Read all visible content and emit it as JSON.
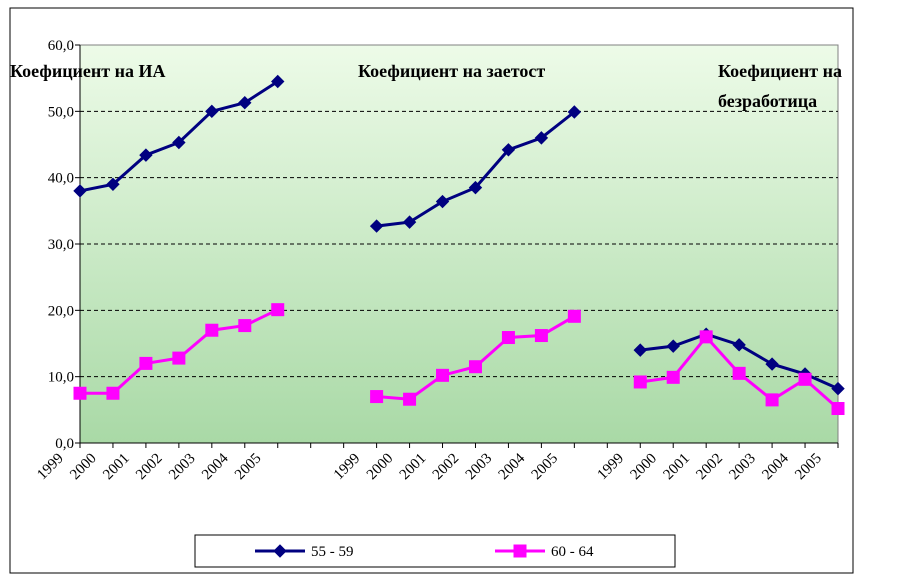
{
  "chart_data": {
    "type": "line",
    "annotations": [
      {
        "lines": [
          "Коефициент на ИА"
        ]
      },
      {
        "lines": [
          "Коефициент на заетост"
        ]
      },
      {
        "lines": [
          "Коефициент на",
          "безработица"
        ]
      }
    ],
    "categories": [
      "1999",
      "2000",
      "2001",
      "2002",
      "2003",
      "2004",
      "2005",
      null,
      null,
      "1999",
      "2000",
      "2001",
      "2002",
      "2003",
      "2004",
      "2005",
      null,
      "1999",
      "2000",
      "2001",
      "2002",
      "2003",
      "2004",
      "2005"
    ],
    "series": [
      {
        "name": "55 - 59",
        "color": "#000080",
        "marker": "diamond",
        "values": [
          38.0,
          39.0,
          43.4,
          45.3,
          50.0,
          51.3,
          54.5,
          null,
          null,
          32.7,
          33.3,
          36.4,
          38.5,
          44.2,
          46.0,
          49.9,
          null,
          14.0,
          14.6,
          16.4,
          14.8,
          11.9,
          10.4,
          8.2
        ]
      },
      {
        "name": "60 - 64",
        "color": "#ff00ff",
        "marker": "square",
        "values": [
          7.5,
          7.5,
          12.0,
          12.8,
          17.0,
          17.7,
          20.1,
          null,
          null,
          7.0,
          6.6,
          10.2,
          11.5,
          15.9,
          16.2,
          19.1,
          null,
          9.2,
          9.9,
          16.0,
          10.5,
          6.5,
          9.6,
          5.2
        ]
      }
    ],
    "ylim": [
      0,
      60
    ],
    "yticks": [
      {
        "value": 0,
        "label": "0,0"
      },
      {
        "value": 10,
        "label": "10,0"
      },
      {
        "value": 20,
        "label": "20,0"
      },
      {
        "value": 30,
        "label": "30,0"
      },
      {
        "value": 40,
        "label": "40,0"
      },
      {
        "value": 50,
        "label": "50,0"
      },
      {
        "value": 60,
        "label": "60,0"
      }
    ],
    "grid": true,
    "legend": "bottom"
  }
}
